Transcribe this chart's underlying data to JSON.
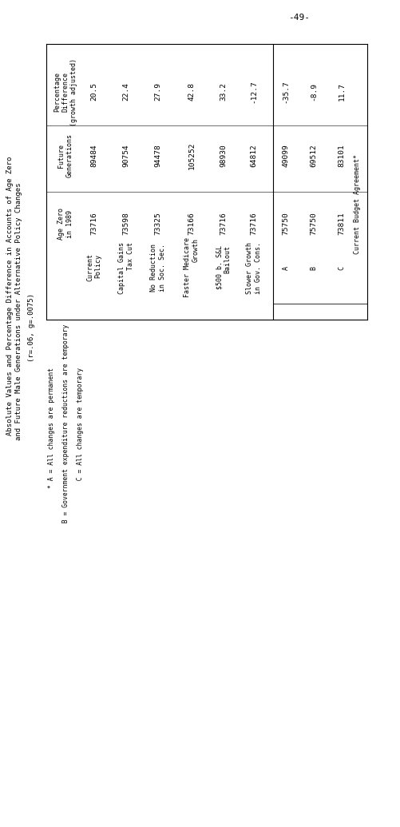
{
  "page_number": "-49-",
  "title_line1": "Absolute Values and Percentage Difference in Accounts of Age Zero",
  "title_line2": "and Future Male Generations under Alternative Policy Changes",
  "title_line3": "(r=.06, g=.0075)",
  "col_headers": [
    "Current\nPolicy",
    "Capital Gains\nTax Cut",
    "No Reduction\nin Soc. Sec.",
    "Faster Medicare\nGrowth",
    "$500 b. S&L\nBailout",
    "Slower Growth\nin Gov. Cons.",
    "A",
    "B",
    "C"
  ],
  "group_header": "Current Budget Agreement",
  "row_labels": [
    "Age Zero\nin 1989",
    "Future\nGenerations",
    "Percentage\nDifference\n(growth adjusted)"
  ],
  "data": [
    [
      "73716",
      "73598",
      "73325",
      "73166",
      "73716",
      "73716",
      "75750",
      "75750",
      "73811"
    ],
    [
      "89484",
      "90754",
      "94478",
      "105252",
      "98930",
      "64812",
      "49099",
      "69512",
      "83101"
    ],
    [
      "20.5",
      "22.4",
      "27.9",
      "42.8",
      "33.2",
      "-12.7",
      "-35.7",
      "-8.9",
      "11.7"
    ]
  ],
  "footnotes": [
    "* A = All changes are permanent",
    "  B = Government expenditure reductions are temporary",
    "  C = All changes are temporary"
  ],
  "bg_color": "#ffffff",
  "text_color": "#000000"
}
